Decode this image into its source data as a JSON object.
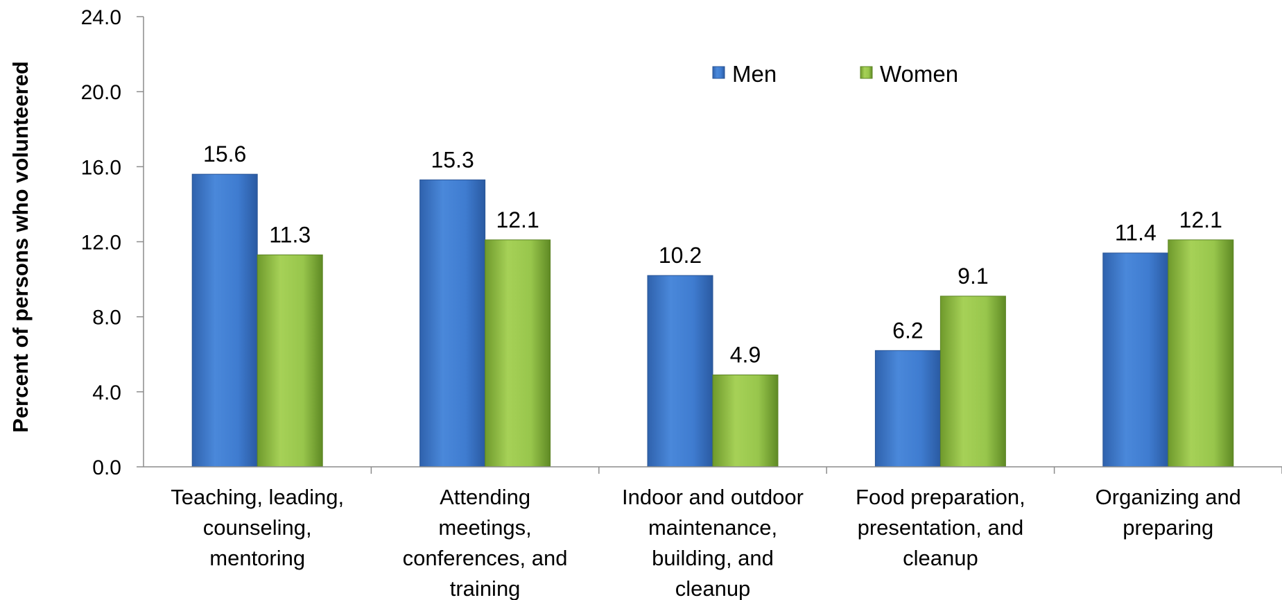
{
  "chart_data": {
    "type": "bar",
    "title": "",
    "xlabel": "",
    "ylabel": "Percent of persons who volunteered",
    "ylim": [
      0,
      24
    ],
    "yticks": [
      "0.0",
      "4.0",
      "8.0",
      "12.0",
      "16.0",
      "20.0",
      "24.0"
    ],
    "grid": false,
    "legend_position": "top-center",
    "categories": [
      [
        "Teaching, leading,",
        "counseling,",
        "mentoring"
      ],
      [
        "Attending",
        "meetings,",
        "conferences, and",
        "training"
      ],
      [
        "Indoor and outdoor",
        "maintenance,",
        "building, and",
        "cleanup"
      ],
      [
        "Food preparation,",
        "presentation, and",
        "cleanup"
      ],
      [
        "Organizing and",
        "preparing"
      ]
    ],
    "series": [
      {
        "name": "Men",
        "values": [
          15.6,
          15.3,
          10.2,
          6.2,
          11.4
        ],
        "labels": [
          "15.6",
          "15.3",
          "10.2",
          "6.2",
          "11.4"
        ],
        "color": "#4a86d6"
      },
      {
        "name": "Women",
        "values": [
          11.3,
          12.1,
          4.9,
          9.1,
          12.1
        ],
        "labels": [
          "11.3",
          "12.1",
          "4.9",
          "9.1",
          "12.1"
        ],
        "color": "#9cc84a"
      }
    ]
  }
}
